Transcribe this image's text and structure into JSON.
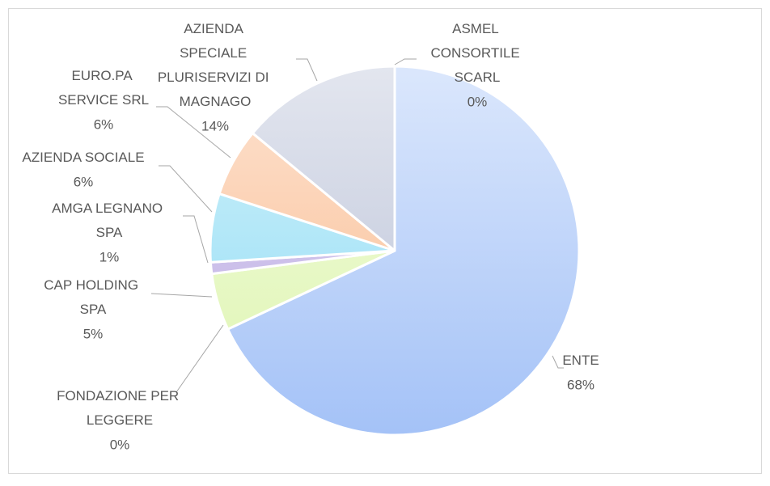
{
  "chart_data": {
    "type": "pie",
    "categories": [
      "ENTE",
      "FONDAZIONE PER LEGGERE",
      "CAP HOLDING SPA",
      "AMGA LEGNANO SPA",
      "AZIENDA SOCIALE",
      "EURO.PA SERVICE SRL",
      "AZIENDA SPECIALE PLURISERVIZI DI MAGNAGO",
      "ASMEL CONSORTILE SCARL"
    ],
    "values": [
      68,
      0,
      5,
      1,
      6,
      6,
      14,
      0
    ],
    "value_labels": [
      "68%",
      "0%",
      "5%",
      "1%",
      "6%",
      "6%",
      "14%",
      "0%"
    ],
    "colors": [
      "#a4c2f7",
      "#b0b0b0",
      "#def5b0",
      "#b9a8e2",
      "#8edcf4",
      "#f9b98c",
      "#b8c0d6",
      "#c8c8c8"
    ]
  }
}
